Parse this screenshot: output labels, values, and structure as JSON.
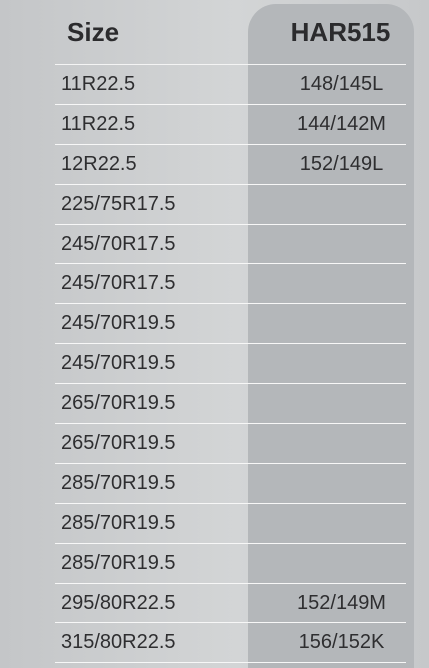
{
  "table": {
    "headers": {
      "size": "Size",
      "model": "HAR515"
    },
    "rows": [
      {
        "size": "11R22.5",
        "load_speed": "148/145L"
      },
      {
        "size": "11R22.5",
        "load_speed": "144/142M"
      },
      {
        "size": "12R22.5",
        "load_speed": "152/149L"
      },
      {
        "size": "225/75R17.5",
        "load_speed": ""
      },
      {
        "size": "245/70R17.5",
        "load_speed": ""
      },
      {
        "size": "245/70R17.5",
        "load_speed": ""
      },
      {
        "size": "245/70R19.5",
        "load_speed": ""
      },
      {
        "size": "245/70R19.5",
        "load_speed": ""
      },
      {
        "size": "265/70R19.5",
        "load_speed": ""
      },
      {
        "size": "265/70R19.5",
        "load_speed": ""
      },
      {
        "size": "285/70R19.5",
        "load_speed": ""
      },
      {
        "size": "285/70R19.5",
        "load_speed": ""
      },
      {
        "size": "285/70R19.5",
        "load_speed": ""
      },
      {
        "size": "295/80R22.5",
        "load_speed": "152/149M"
      },
      {
        "size": "315/80R22.5",
        "load_speed": "156/152K"
      }
    ]
  },
  "colors": {
    "background": "#cfd1d3",
    "highlight_column": "#b4b7ba",
    "text": "#2e2e30",
    "row_divider": "#f7f7f7"
  }
}
